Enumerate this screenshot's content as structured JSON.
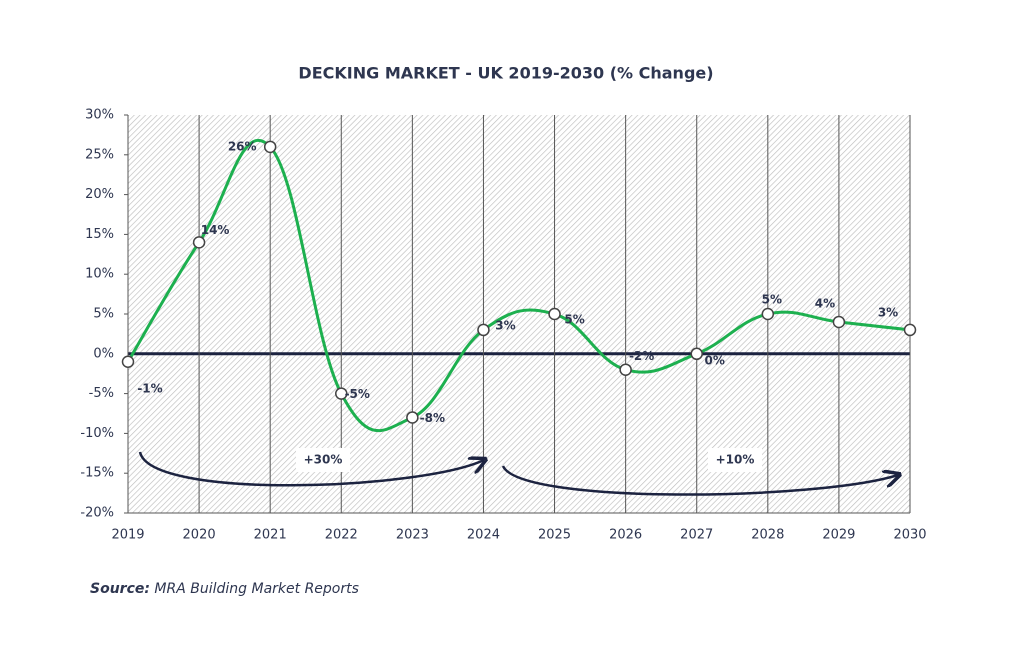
{
  "chart_data": {
    "type": "line",
    "title": "DECKING MARKET - UK 2019-2030 (% Change)",
    "x": [
      2019,
      2020,
      2021,
      2022,
      2023,
      2024,
      2025,
      2026,
      2027,
      2028,
      2029,
      2030
    ],
    "xlim": [
      2019,
      2030
    ],
    "xticks": [
      2019,
      2020,
      2021,
      2022,
      2023,
      2024,
      2025,
      2026,
      2027,
      2028,
      2029,
      2030
    ],
    "series": [
      {
        "name": "% Change",
        "color": "#1db04f",
        "values": [
          -1,
          14,
          26,
          -5,
          -8,
          3,
          5,
          -2,
          0,
          5,
          4,
          3
        ],
        "value_labels": [
          "-1%",
          "14%",
          "26%",
          "-5%",
          "-8%",
          "3%",
          "5%",
          "-2%",
          "0%",
          "5%",
          "4%",
          "3%"
        ]
      }
    ],
    "ylim": [
      -20,
      30
    ],
    "yticks": [
      {
        "value": -20,
        "label": "-20%"
      },
      {
        "value": -15,
        "label": "-15%"
      },
      {
        "value": -10,
        "label": "-10%"
      },
      {
        "value": -5,
        "label": "-5%"
      },
      {
        "value": 0,
        "label": "0%"
      },
      {
        "value": 5,
        "label": "5%"
      },
      {
        "value": 10,
        "label": "10%"
      },
      {
        "value": 15,
        "label": "15%"
      },
      {
        "value": 20,
        "label": "20%"
      },
      {
        "value": 25,
        "label": "25%"
      },
      {
        "value": 30,
        "label": "30%"
      }
    ],
    "grid": true,
    "annotations": [
      "+30%",
      "+10%"
    ],
    "source_label": "Source:",
    "source": "MRA Building Market Reports"
  }
}
